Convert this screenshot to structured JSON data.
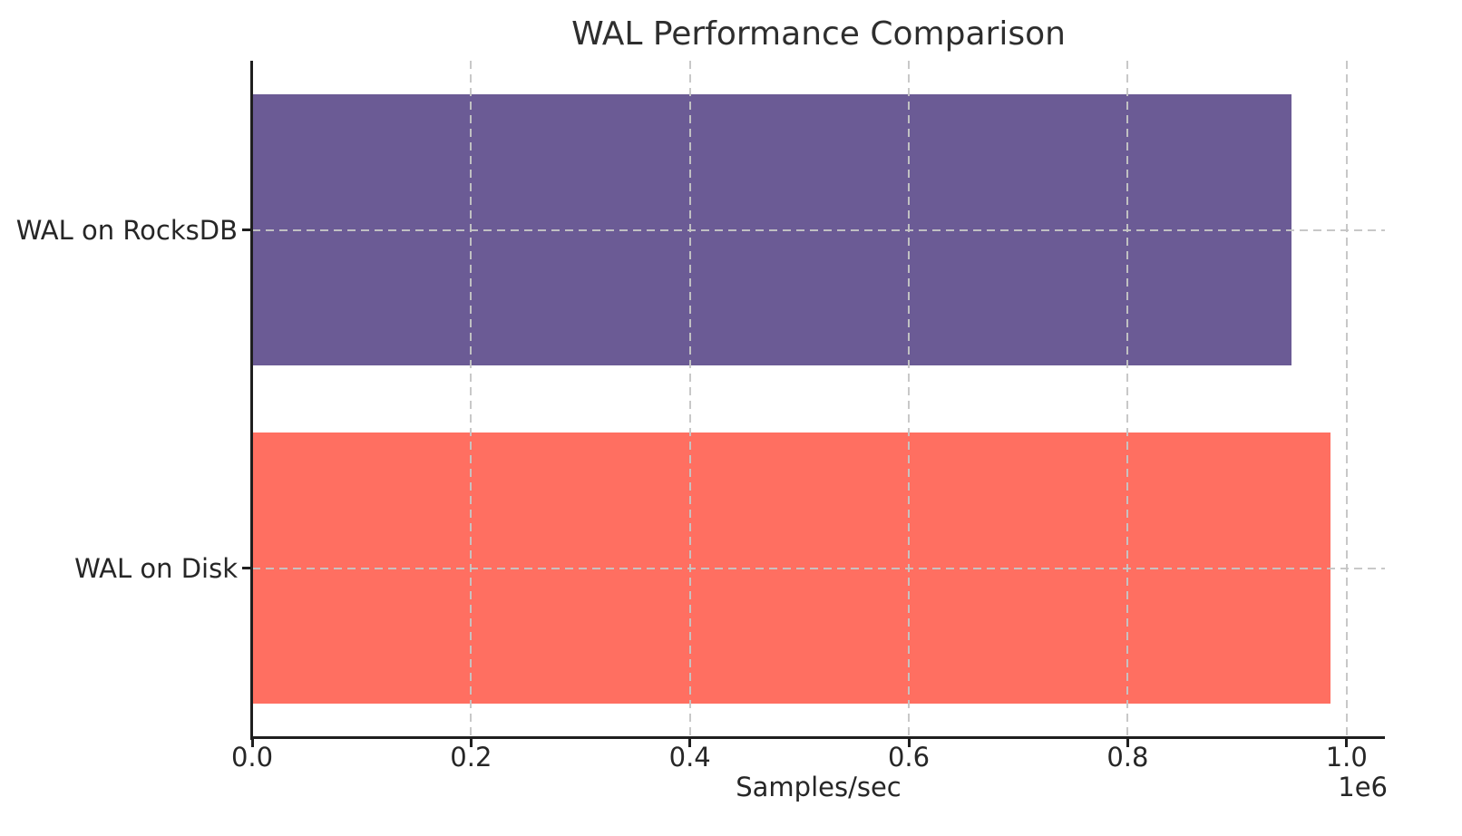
{
  "chart_data": {
    "type": "bar",
    "orientation": "horizontal",
    "title": "WAL Performance Comparison",
    "xlabel": "Samples/sec",
    "ylabel": "",
    "categories": [
      "WAL on RocksDB",
      "WAL on Disk"
    ],
    "values": [
      950000,
      985000
    ],
    "bar_colors": [
      "#6B5B95",
      "#FF6F61"
    ],
    "bar_height_fraction": 0.8,
    "xlim": [
      0,
      1035000
    ],
    "xticks": [
      0,
      200000,
      400000,
      600000,
      800000,
      1000000
    ],
    "xtick_labels": [
      "0.0",
      "0.2",
      "0.4",
      "0.6",
      "0.8",
      "1.0"
    ],
    "offset_text": "1e6",
    "grid": "dashed",
    "grid_color": "#c5c5c5",
    "grid_above_bars": true,
    "legend_position": "none",
    "background_color": "#ffffff",
    "spine_color": "#1f1f1f",
    "text_color": "#262626"
  }
}
